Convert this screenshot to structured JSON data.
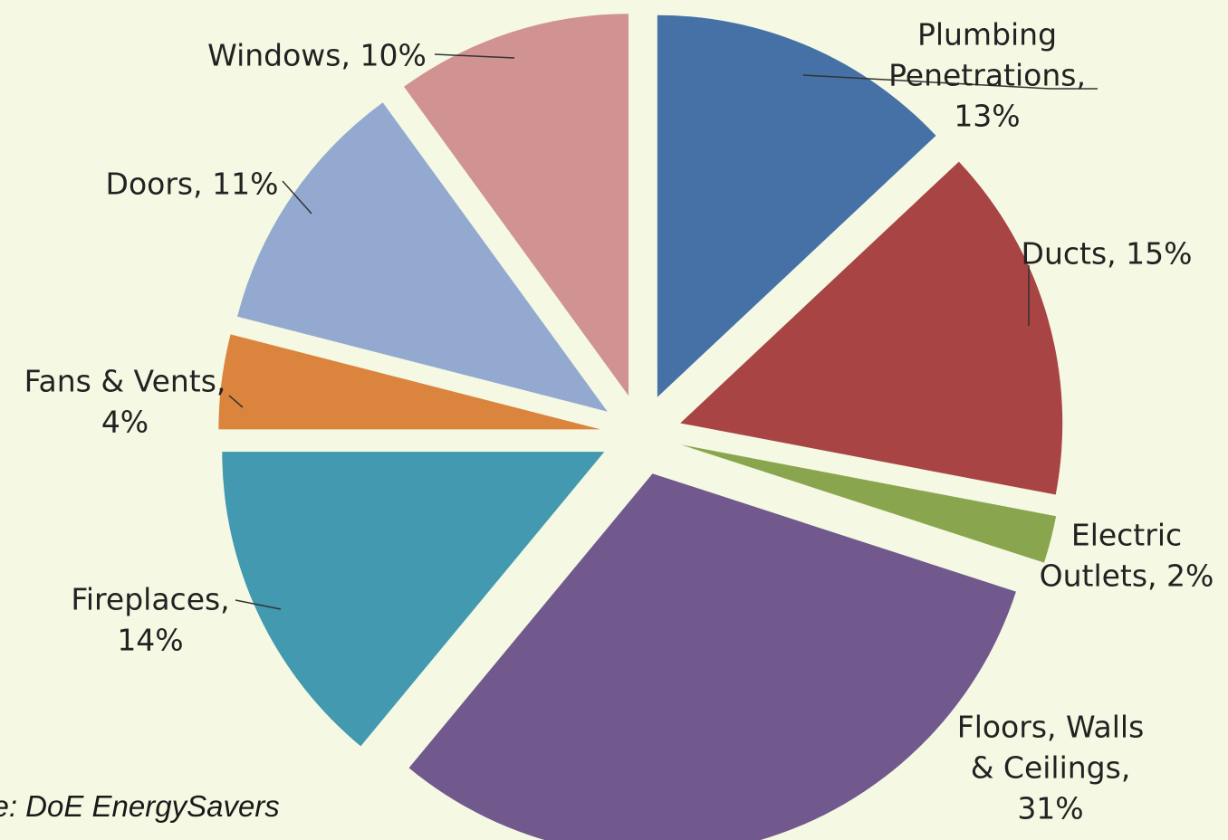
{
  "chart_data": {
    "type": "pie",
    "exploded": true,
    "slices": [
      {
        "name": "Plumbing Penetrations",
        "label_lines": [
          "Plumbing",
          "Penetrations,",
          "13%"
        ],
        "value": 13,
        "color": "#4571A6"
      },
      {
        "name": "Ducts",
        "label_lines": [
          "Ducts, 15%"
        ],
        "value": 15,
        "color": "#A84544"
      },
      {
        "name": "Electric Outlets",
        "label_lines": [
          "Electric",
          "Outlets, 2%"
        ],
        "value": 2,
        "color": "#89A64F"
      },
      {
        "name": "Floors, Walls & Ceilings",
        "label_lines": [
          "Floors, Walls",
          "& Ceilings,",
          "31%"
        ],
        "value": 31,
        "color": "#71598E"
      },
      {
        "name": "Fireplaces",
        "label_lines": [
          "Fireplaces,",
          "14%"
        ],
        "value": 14,
        "color": "#4299B0"
      },
      {
        "name": "Fans & Vents",
        "label_lines": [
          "Fans & Vents,",
          "4%"
        ],
        "value": 4,
        "color": "#DB843D"
      },
      {
        "name": "Doors",
        "label_lines": [
          "Doors, 11%"
        ],
        "value": 11,
        "color": "#93A9D0"
      },
      {
        "name": "Windows",
        "label_lines": [
          "Windows, 10%"
        ],
        "value": 10,
        "color": "#D09392"
      }
    ]
  },
  "source_text": "rce: DoE EnergySavers"
}
